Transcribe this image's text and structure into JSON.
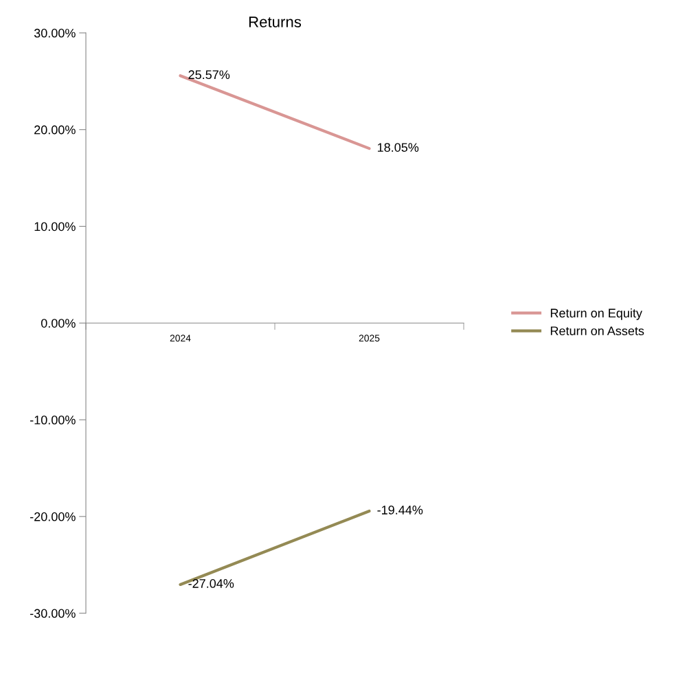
{
  "chart_data": {
    "type": "line",
    "title": "Returns",
    "categories": [
      "2024",
      "2025"
    ],
    "series": [
      {
        "name": "Return on Equity",
        "color": "#d99694",
        "values": [
          25.57,
          18.05
        ],
        "value_labels": [
          "25.57%",
          "18.05%"
        ]
      },
      {
        "name": "Return on Assets",
        "color": "#948a54",
        "values": [
          -27.04,
          -19.44
        ],
        "value_labels": [
          "-27.04%",
          "-19.44%"
        ]
      }
    ],
    "ylim": [
      -30,
      30
    ],
    "yticks": [
      {
        "value": -30,
        "label": "-30.00%"
      },
      {
        "value": -20,
        "label": "-20.00%"
      },
      {
        "value": -10,
        "label": "-10.00%"
      },
      {
        "value": 0,
        "label": "0.00%"
      },
      {
        "value": 10,
        "label": "10.00%"
      },
      {
        "value": 20,
        "label": "20.00%"
      },
      {
        "value": 30,
        "label": "30.00%"
      }
    ],
    "grid": false,
    "legend": "right",
    "line_style": "solid"
  }
}
